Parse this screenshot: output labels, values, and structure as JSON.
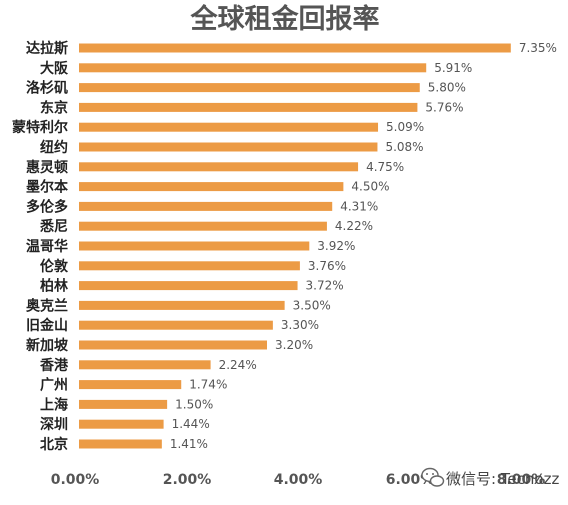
{
  "chart_data": {
    "type": "bar",
    "orientation": "horizontal",
    "title": "全球租金回报率",
    "categories": [
      "达拉斯",
      "大阪",
      "洛杉矶",
      "东京",
      "蒙特利尔",
      "纽约",
      "惠灵顿",
      "墨尔本",
      "多伦多",
      "悉尼",
      "温哥华",
      "伦敦",
      "柏林",
      "奥克兰",
      "旧金山",
      "新加坡",
      "香港",
      "广州",
      "上海",
      "深圳",
      "北京"
    ],
    "values": [
      7.35,
      5.91,
      5.8,
      5.76,
      5.09,
      5.08,
      4.75,
      4.5,
      4.31,
      4.22,
      3.92,
      3.76,
      3.72,
      3.5,
      3.3,
      3.2,
      2.24,
      1.74,
      1.5,
      1.44,
      1.41
    ],
    "value_labels": [
      "7.35%",
      "5.91%",
      "5.80%",
      "5.76%",
      "5.09%",
      "5.08%",
      "4.75%",
      "4.50%",
      "4.31%",
      "4.22%",
      "3.92%",
      "3.76%",
      "3.72%",
      "3.50%",
      "3.30%",
      "3.20%",
      "2.24%",
      "1.74%",
      "1.50%",
      "1.44%",
      "1.41%"
    ],
    "xlim": [
      0,
      8
    ],
    "x_tick_labels": [
      "0.00%",
      "2.00%",
      "4.00%",
      "6.00%",
      "8.00%"
    ],
    "bar_color": "#EC9B45",
    "grid": false,
    "legend": "none"
  },
  "watermark": {
    "text": "微信号: Tecnozz",
    "icon": "wechat-icon"
  }
}
